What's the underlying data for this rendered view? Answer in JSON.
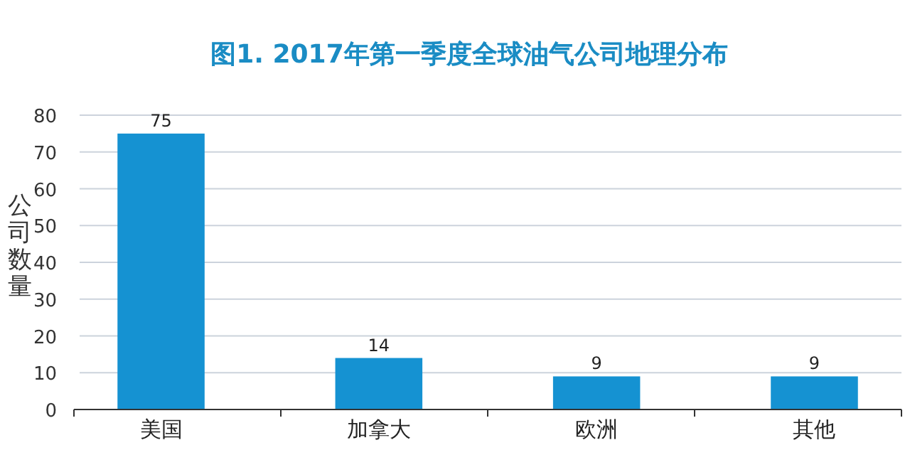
{
  "chart_data": {
    "type": "bar",
    "title": "图1. 2017年第一季度全球油气公司地理分布",
    "ylabel": "公司数量",
    "categories": [
      "美国",
      "加拿大",
      "欧洲",
      "其他"
    ],
    "values": [
      75,
      14,
      9,
      9
    ],
    "color": "#1592d2",
    "data_labels": true,
    "ylim": [
      0,
      80
    ],
    "yticks": [
      0,
      10,
      20,
      30,
      40,
      50,
      60,
      70,
      80
    ],
    "grid": "y"
  }
}
